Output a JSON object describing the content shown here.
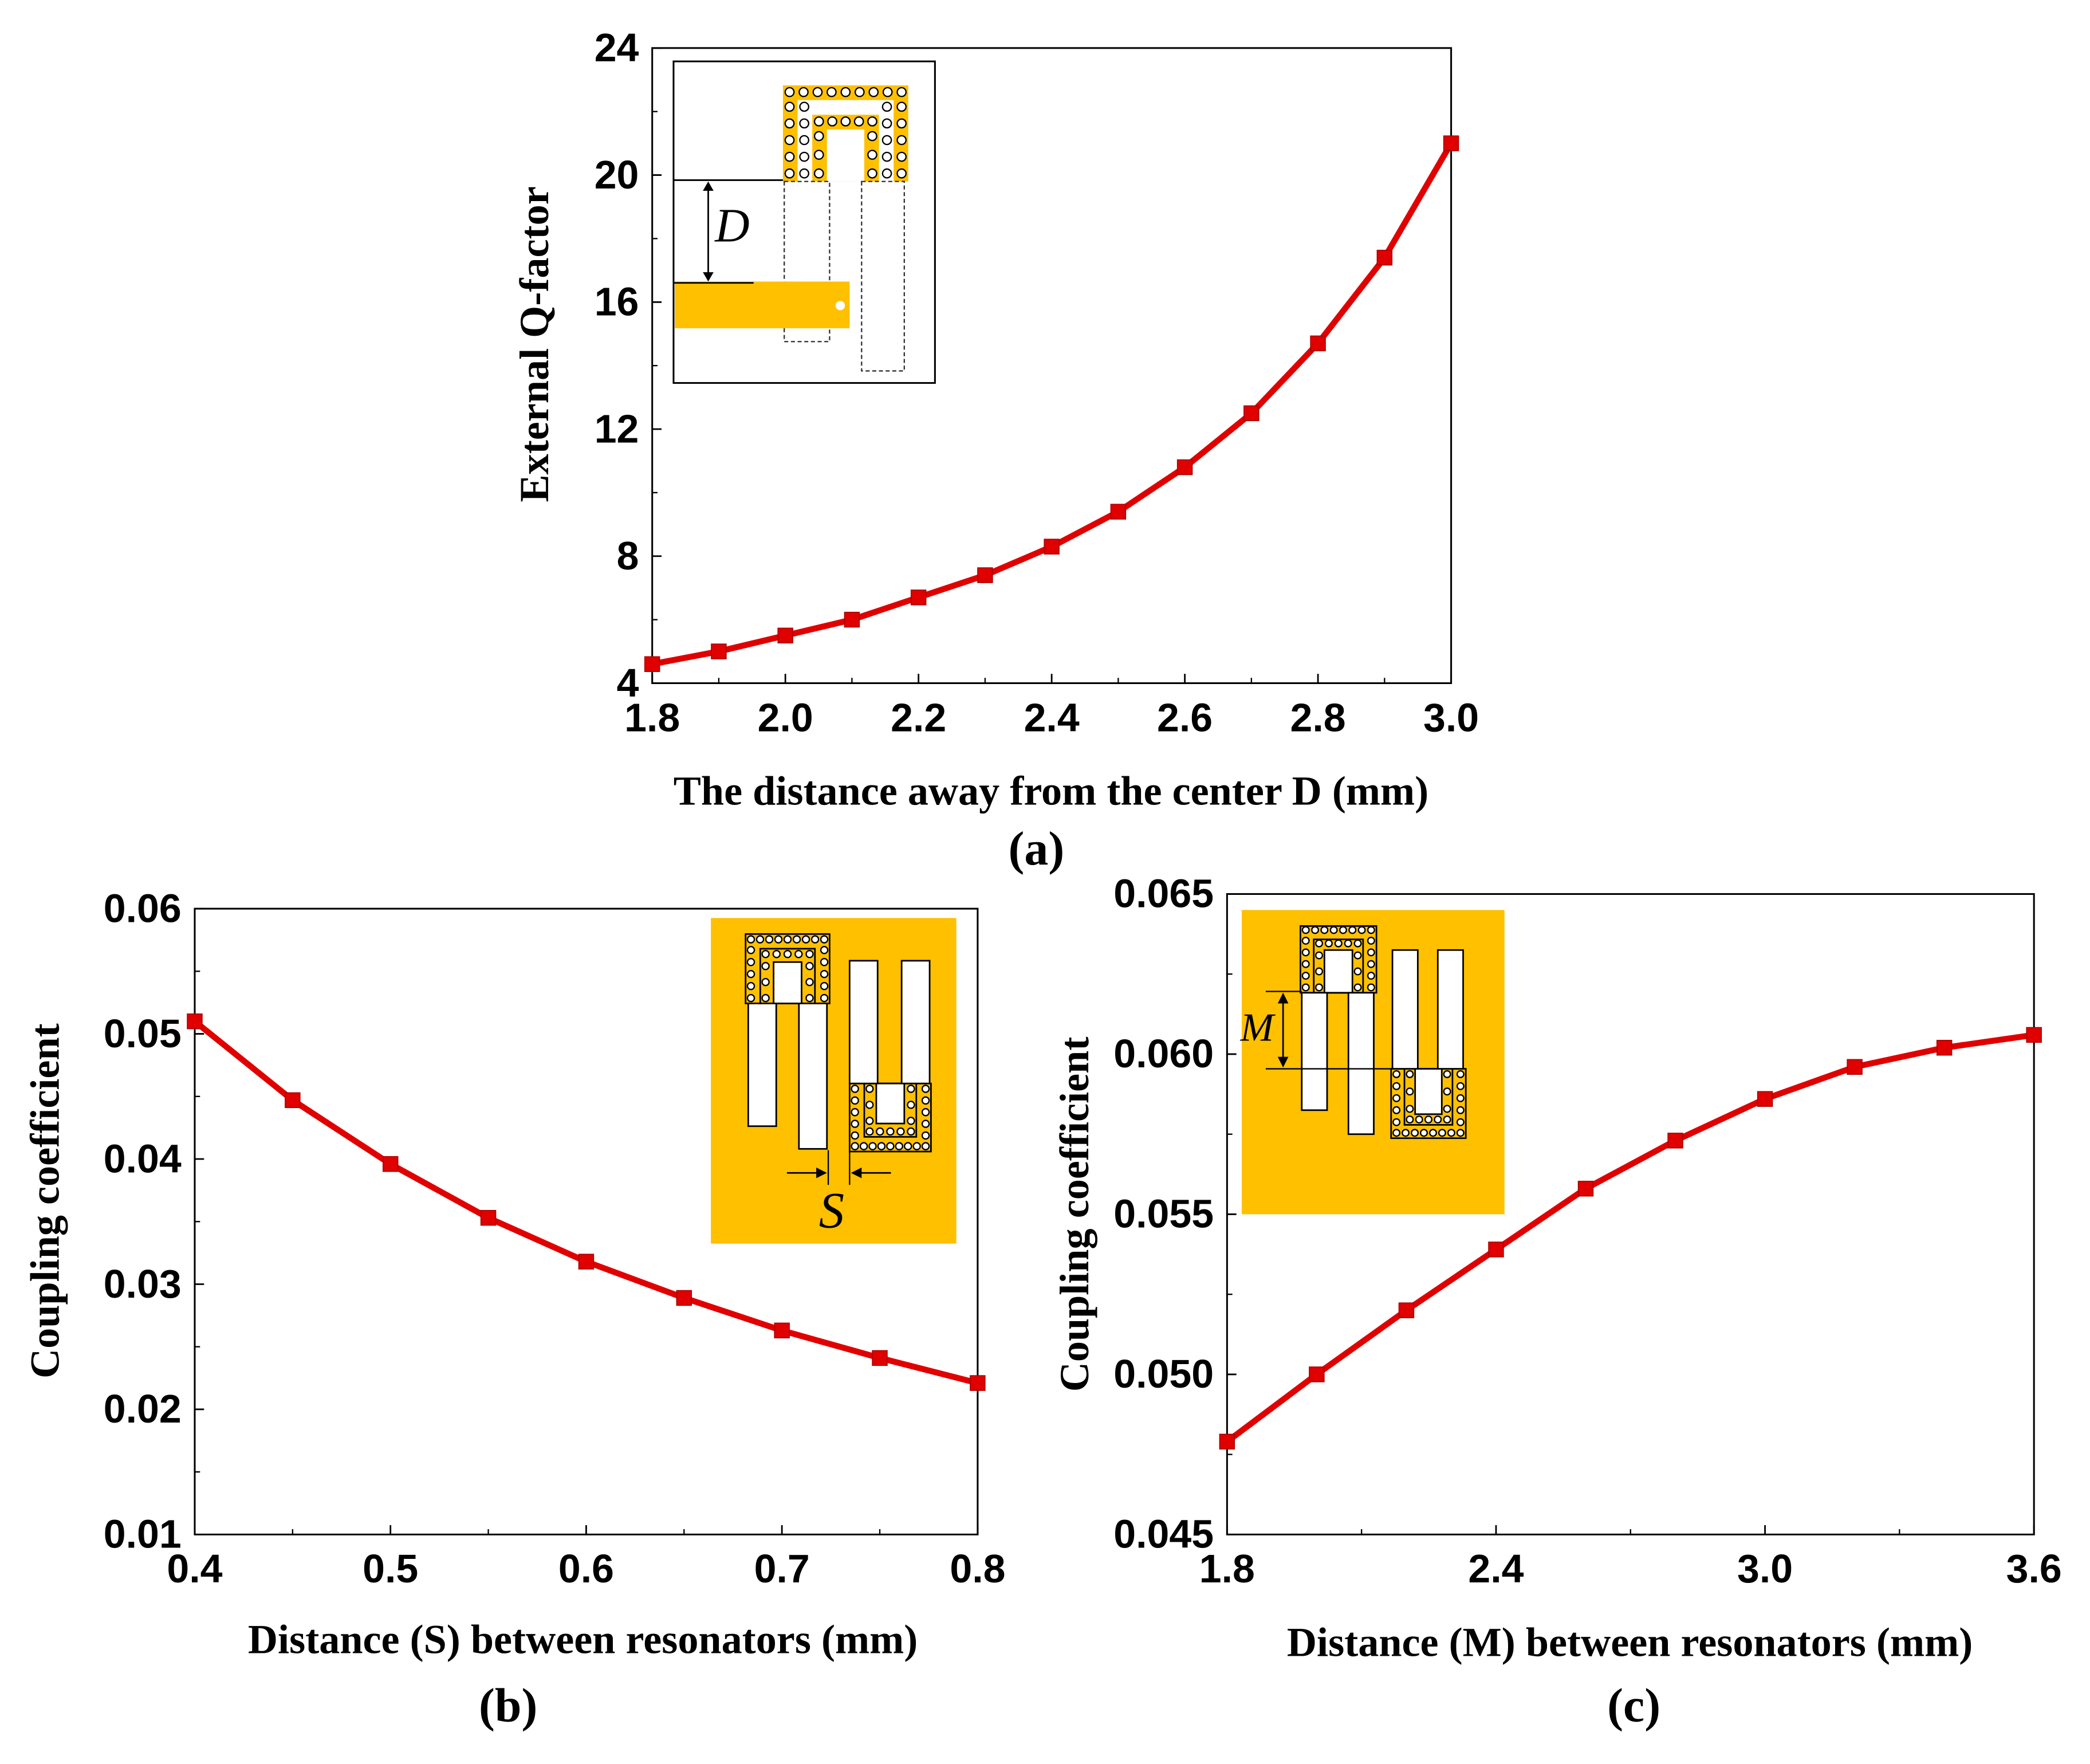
{
  "chart_data": [
    {
      "type": "line",
      "panel_label": "(a)",
      "xlabel": "The distance away from the center D (mm)",
      "ylabel": "External Q-factor",
      "xlim": [
        1.8,
        3.0
      ],
      "ylim": [
        4,
        24
      ],
      "xticks": [
        "1.8",
        "2.0",
        "2.2",
        "2.4",
        "2.6",
        "2.8",
        "3.0"
      ],
      "yticks": [
        "4",
        "8",
        "12",
        "16",
        "20",
        "24"
      ],
      "x": [
        1.8,
        1.9,
        2.0,
        2.1,
        2.2,
        2.3,
        2.4,
        2.5,
        2.6,
        2.7,
        2.8,
        2.9,
        3.0
      ],
      "y": [
        4.6,
        5.0,
        5.5,
        6.0,
        6.7,
        7.4,
        8.3,
        9.4,
        10.8,
        12.5,
        14.7,
        17.4,
        21.0
      ],
      "inset": {
        "label": "D"
      }
    },
    {
      "type": "line",
      "panel_label": "(b)",
      "xlabel": "Distance (S) between resonators (mm)",
      "ylabel": "Coupling coefficient",
      "xlim": [
        0.4,
        0.8
      ],
      "ylim": [
        0.01,
        0.06
      ],
      "xticks": [
        "0.4",
        "0.5",
        "0.6",
        "0.7",
        "0.8"
      ],
      "yticks": [
        "0.01",
        "0.02",
        "0.03",
        "0.04",
        "0.05",
        "0.06"
      ],
      "x": [
        0.4,
        0.45,
        0.5,
        0.55,
        0.6,
        0.65,
        0.7,
        0.75,
        0.8
      ],
      "y": [
        0.051,
        0.0447,
        0.0396,
        0.0353,
        0.0318,
        0.0289,
        0.0263,
        0.0241,
        0.0221
      ],
      "inset": {
        "label": "S"
      }
    },
    {
      "type": "line",
      "panel_label": "(c)",
      "xlabel": "Distance (M) between resonators (mm)",
      "ylabel": "Coupling coefficient",
      "xlim": [
        1.8,
        3.6
      ],
      "ylim": [
        0.045,
        0.065
      ],
      "xticks": [
        "1.8",
        "2.4",
        "3.0",
        "3.6"
      ],
      "yticks": [
        "0.045",
        "0.050",
        "0.055",
        "0.060",
        "0.065"
      ],
      "x": [
        1.8,
        2.0,
        2.2,
        2.4,
        2.6,
        2.8,
        3.0,
        3.2,
        3.4,
        3.6
      ],
      "y": [
        0.0479,
        0.05,
        0.052,
        0.0539,
        0.0558,
        0.0573,
        0.0586,
        0.0596,
        0.0602,
        0.0606
      ],
      "inset": {
        "label": "M"
      }
    }
  ]
}
